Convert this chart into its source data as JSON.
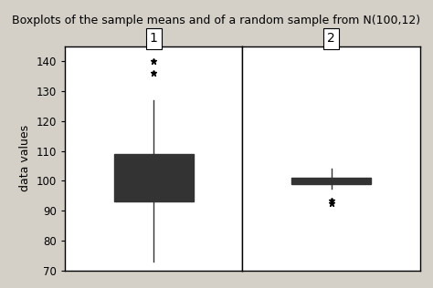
{
  "title": "Boxplots of the sample means and of a random sample from N(100,12)",
  "ylabel": "data values",
  "ylim": [
    70,
    145
  ],
  "yticks": [
    70,
    80,
    90,
    100,
    110,
    120,
    130,
    140
  ],
  "col_labels": [
    "1",
    "2"
  ],
  "background_color": "#d4d0c8",
  "panel_bg": "#ffffff",
  "box_facecolor": "#b0b0b0",
  "box1": {
    "whislo": 73,
    "q1": 93,
    "med": 101,
    "q3": 109,
    "whishi": 127,
    "fliers_high": [
      140,
      136
    ],
    "fliers_low": []
  },
  "box2": {
    "whislo": 97.5,
    "q1": 99.0,
    "med": 100.0,
    "q3": 101.0,
    "whishi": 104,
    "fliers_high": [],
    "fliers_low": [
      93.5,
      92.5
    ]
  },
  "title_fontsize": 9,
  "label_fontsize": 10,
  "tick_fontsize": 8.5,
  "ylabel_fontsize": 9
}
